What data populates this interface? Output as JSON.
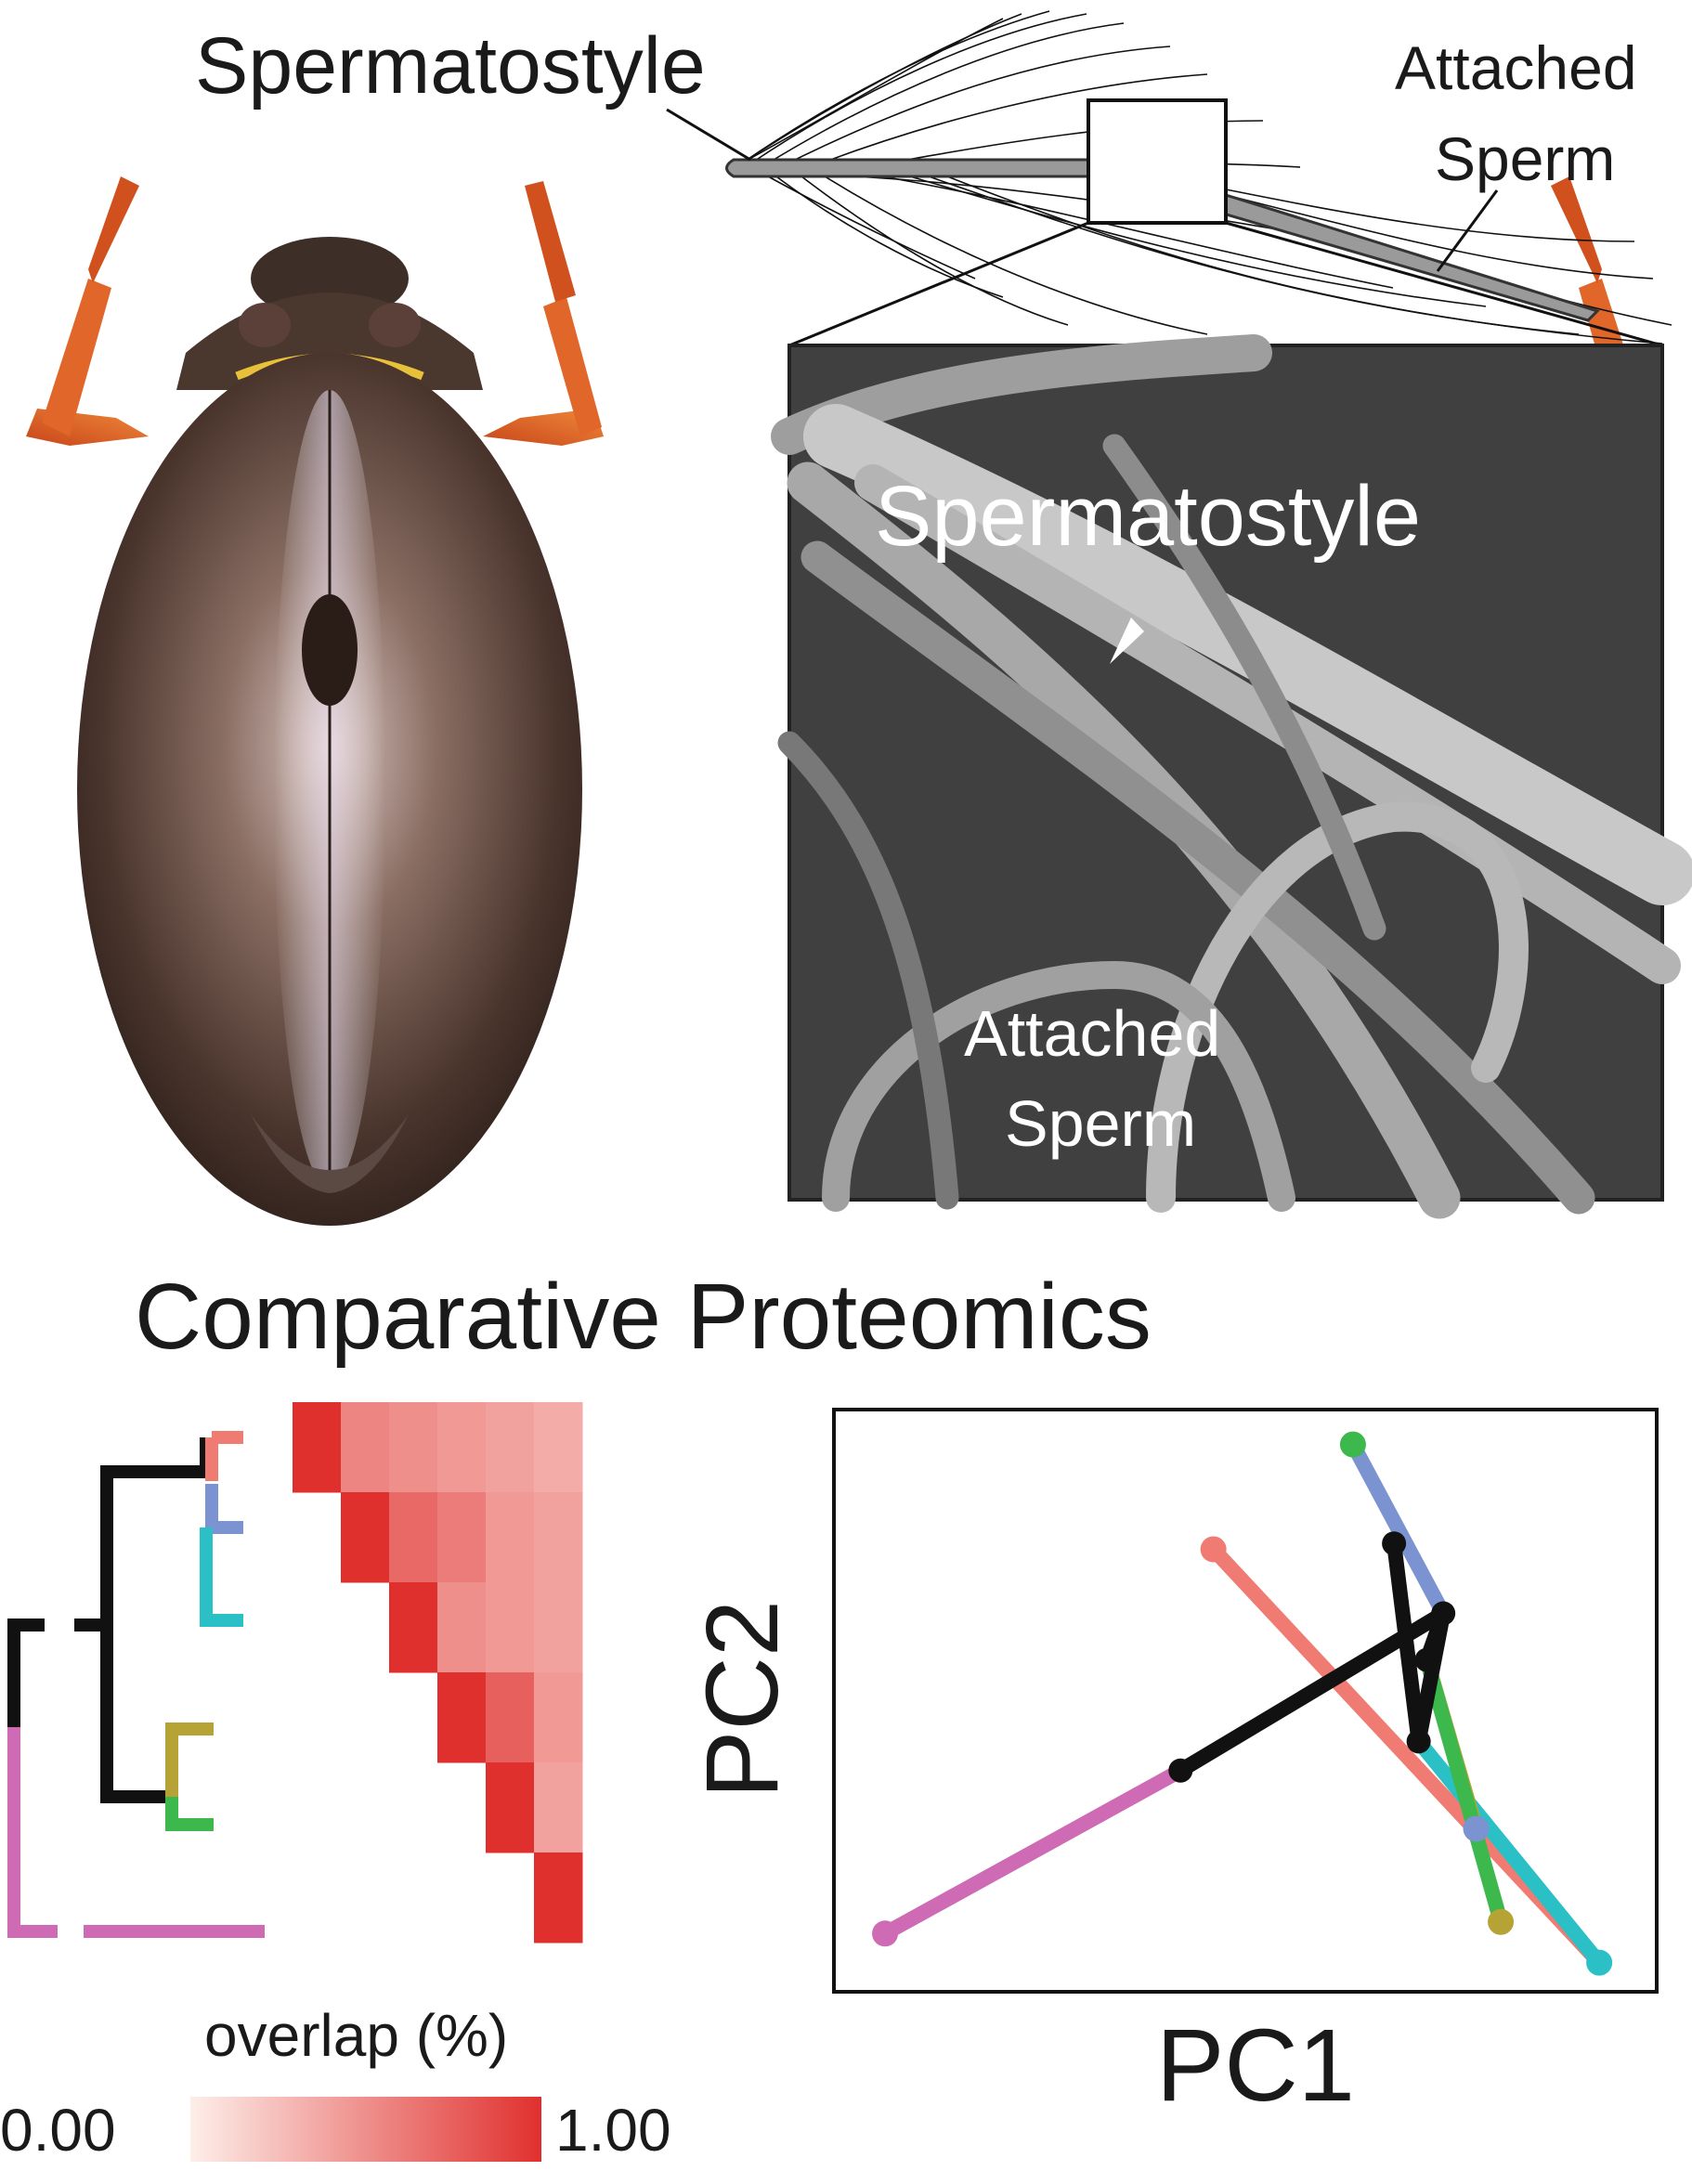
{
  "top": {
    "spermatostyle_label": "Spermatostyle",
    "attached_sperm_line1": "Attached",
    "attached_sperm_line2": "Sperm"
  },
  "micrograph": {
    "spermatostyle_label": "Spermatostyle",
    "attached_sperm_line1": "Attached",
    "attached_sperm_line2": "Sperm"
  },
  "section_title": "Comparative Proteomics",
  "colorbar": {
    "title": "overlap (%)",
    "min_label": "0.00",
    "max_label": "1.00",
    "min_color": "#fdeee9",
    "max_color": "#e0302e"
  },
  "tree_colors": [
    "#f07b72",
    "#7b93d0",
    "#2bbfc6",
    "#b5a435",
    "#3cb84d",
    "#cf6ab5"
  ],
  "heatmap": {
    "values": [
      [
        1.0,
        0.55,
        0.5,
        0.45,
        0.4,
        0.35
      ],
      [
        1.0,
        0.7,
        0.6,
        0.45,
        0.4
      ],
      [
        1.0,
        0.5,
        0.45,
        0.4
      ],
      [
        1.0,
        0.75,
        0.45
      ],
      [
        1.0,
        0.4
      ],
      [
        1.0
      ]
    ]
  },
  "pca": {
    "xlabel": "PC1",
    "ylabel": "PC2",
    "internal_nodes": [
      [
        0.42,
        0.38
      ],
      [
        0.72,
        0.57
      ],
      [
        0.68,
        0.77
      ],
      [
        0.74,
        0.65
      ],
      [
        0.71,
        0.43
      ]
    ],
    "tip_points": [
      [
        0.06,
        0.1
      ],
      [
        0.46,
        0.76
      ],
      [
        0.63,
        0.94
      ],
      [
        0.81,
        0.12
      ],
      [
        0.78,
        0.28
      ],
      [
        0.93,
        0.05
      ]
    ]
  }
}
